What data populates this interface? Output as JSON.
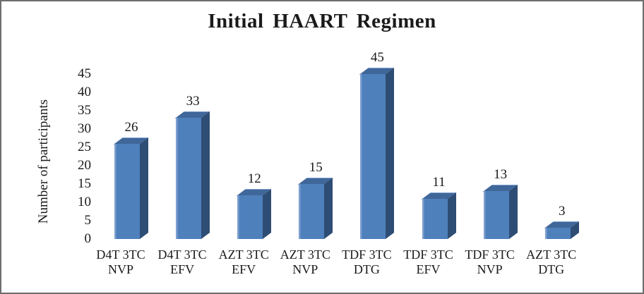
{
  "chart_data": {
    "type": "bar",
    "title": "Initial HAART Regimen",
    "ylabel": "Number of participants",
    "xlabel": "",
    "ylim": [
      0,
      45
    ],
    "yticks": [
      0,
      5,
      10,
      15,
      20,
      25,
      30,
      35,
      40,
      45
    ],
    "grid": false,
    "legend": "none",
    "bar_style": "3d-column",
    "categories": [
      {
        "line1": "D4T 3TC",
        "line2": "NVP"
      },
      {
        "line1": "D4T 3TC",
        "line2": "EFV"
      },
      {
        "line1": "AZT 3TC",
        "line2": "EFV"
      },
      {
        "line1": "AZT 3TC",
        "line2": "NVP"
      },
      {
        "line1": "TDF 3TC",
        "line2": "DTG"
      },
      {
        "line1": "TDF 3TC",
        "line2": "EFV"
      },
      {
        "line1": "TDF 3TC",
        "line2": "NVP"
      },
      {
        "line1": "AZT 3TC",
        "line2": "DTG"
      }
    ],
    "values": [
      26,
      33,
      12,
      15,
      45,
      11,
      13,
      3
    ],
    "colors": {
      "bar_front": "#4e80bc",
      "bar_front_highlight": "#7e9fce",
      "bar_top": "#40679a",
      "bar_side": "#2e4d74",
      "text": "#1a1a1a",
      "frame_border": "#6e6e6e",
      "background": "#ffffff"
    }
  }
}
